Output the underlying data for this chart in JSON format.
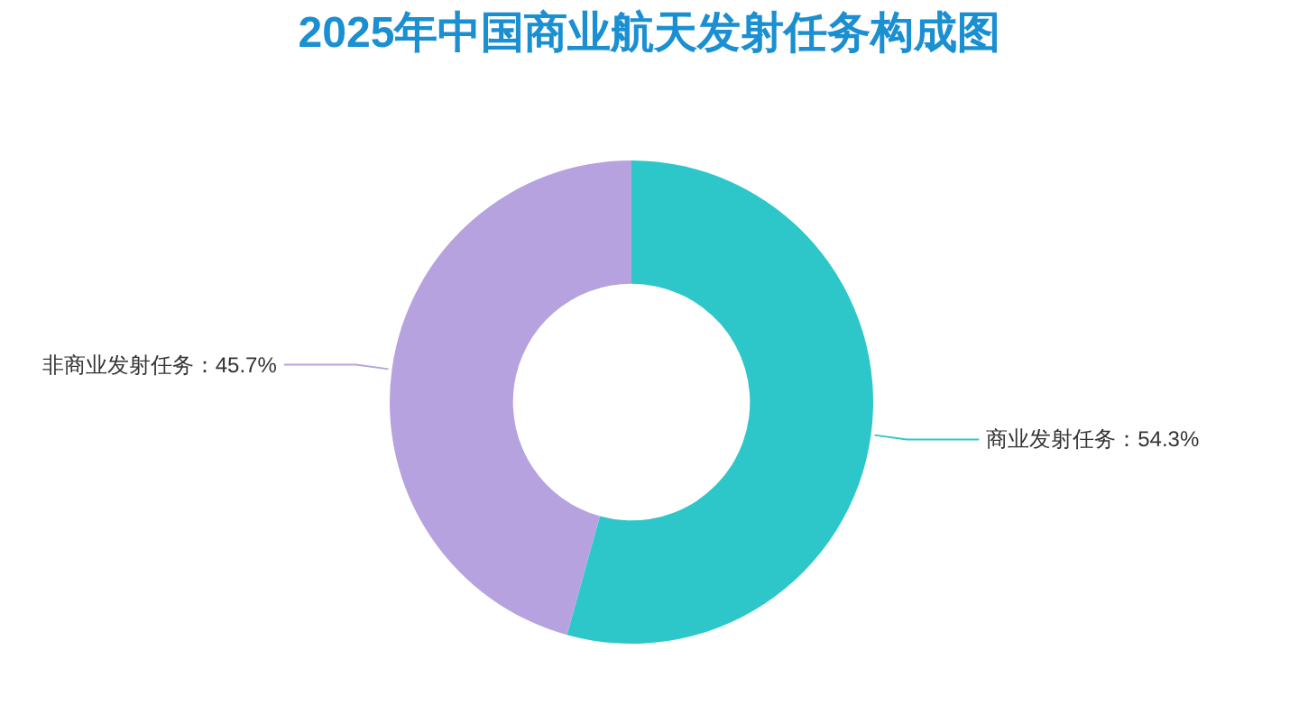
{
  "chart_data": {
    "type": "donut",
    "title": "2025年中国商业航天发射任务构成图",
    "categories": [
      "商业发射任务",
      "非商业发射任务"
    ],
    "values": [
      54.3,
      45.7
    ],
    "value_labels": [
      "54.3%",
      "45.7%"
    ],
    "colors": [
      "#2ec7c9",
      "#b6a2de"
    ]
  }
}
